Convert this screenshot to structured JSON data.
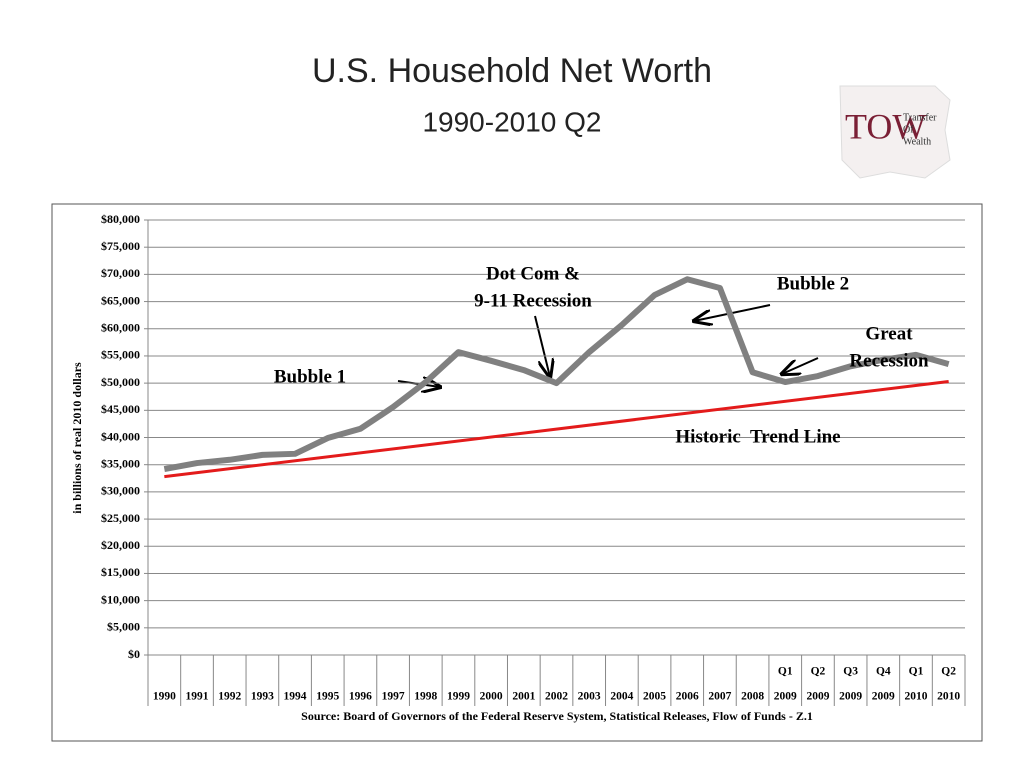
{
  "title": "U.S. Household Net Worth",
  "subtitle": "1990-2010 Q2",
  "logo": {
    "letters": "TOW",
    "lines": [
      "Transfer",
      "Of",
      "Wealth"
    ]
  },
  "chart_data": {
    "type": "line",
    "y_label": "in billions of real 2010 dollars",
    "source": "Source: Board of Governors of the Federal Reserve System, Statistical Releases, Flow of Funds - Z.1",
    "categories": [
      "1990",
      "1991",
      "1992",
      "1993",
      "1994",
      "1995",
      "1996",
      "1997",
      "1998",
      "1999",
      "2000",
      "2001",
      "2002",
      "2003",
      "2004",
      "2005",
      "2006",
      "2007",
      "2008",
      "2009",
      "2009",
      "2009",
      "2009",
      "2010",
      "2010"
    ],
    "quarters": [
      null,
      null,
      null,
      null,
      null,
      null,
      null,
      null,
      null,
      null,
      null,
      null,
      null,
      null,
      null,
      null,
      null,
      null,
      null,
      "Q1",
      "Q2",
      "Q3",
      "Q4",
      "Q1",
      "Q2"
    ],
    "series": [
      {
        "color": "#808080",
        "values": [
          34200,
          35300,
          35900,
          36800,
          37000,
          39900,
          41600,
          45600,
          50200,
          55700,
          54100,
          52400,
          50000,
          55700,
          60700,
          66200,
          69100,
          67500,
          52000,
          50200,
          51300,
          53100,
          54300,
          55200,
          53500
        ]
      }
    ],
    "trend": {
      "label": "Historic  Trend Line",
      "color": "#e31b1b",
      "start": 32800,
      "end": 50300
    },
    "annotations": [
      {
        "lines": [
          "Bubble 1"
        ]
      },
      {
        "lines": [
          "Dot Com &",
          "9-11 Recession"
        ]
      },
      {
        "lines": [
          "Bubble 2"
        ]
      },
      {
        "lines": [
          "Great",
          "Recession"
        ]
      }
    ],
    "ylim": [
      0,
      80000
    ],
    "yticks": [
      {
        "value": 0,
        "label": "$0"
      },
      {
        "value": 5000,
        "label": "$5,000"
      },
      {
        "value": 10000,
        "label": "$10,000"
      },
      {
        "value": 15000,
        "label": "$15,000"
      },
      {
        "value": 20000,
        "label": "$20,000"
      },
      {
        "value": 25000,
        "label": "$25,000"
      },
      {
        "value": 30000,
        "label": "$30,000"
      },
      {
        "value": 35000,
        "label": "$35,000"
      },
      {
        "value": 40000,
        "label": "$40,000"
      },
      {
        "value": 45000,
        "label": "$45,000"
      },
      {
        "value": 50000,
        "label": "$50,000"
      },
      {
        "value": 55000,
        "label": "$55,000"
      },
      {
        "value": 60000,
        "label": "$60,000"
      },
      {
        "value": 65000,
        "label": "$65,000"
      },
      {
        "value": 70000,
        "label": "$70,000"
      },
      {
        "value": 75000,
        "label": "$75,000"
      },
      {
        "value": 80000,
        "label": "$80,000"
      }
    ],
    "grid": true
  }
}
